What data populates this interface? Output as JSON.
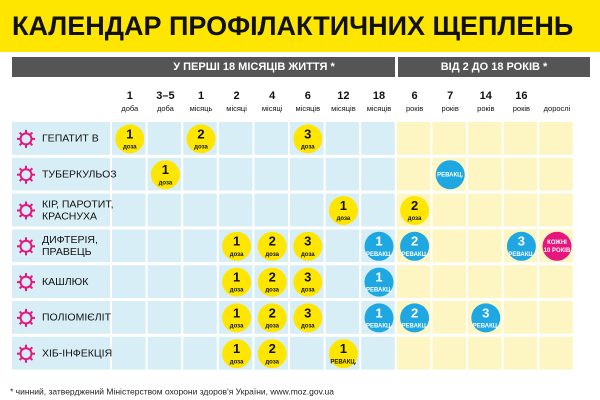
{
  "title": "КАЛЕНДАР ПРОФІЛАКТИЧНИХ ЩЕПЛЕНЬ",
  "groups": [
    "У ПЕРШІ 18 МІСЯЦІВ ЖИТТЯ *",
    "ВІД 2 ДО 18 РОКІВ *"
  ],
  "columns": [
    {
      "number": 1,
      "unit": "доба"
    },
    {
      "number": "3–5",
      "unit": "доба"
    },
    {
      "number": 1,
      "unit": "місяць"
    },
    {
      "number": 2,
      "unit": "місяці"
    },
    {
      "number": 4,
      "unit": "місяці"
    },
    {
      "number": 6,
      "unit": "місяців"
    },
    {
      "number": 12,
      "unit": "місяців"
    },
    {
      "number": 18,
      "unit": "місяців"
    },
    {
      "number": 6,
      "unit": "років"
    },
    {
      "number": 7,
      "unit": "років"
    },
    {
      "number": 14,
      "unit": "років"
    },
    {
      "number": 16,
      "unit": "років"
    },
    {
      "unit": "дорослі"
    }
  ],
  "rows": [
    {
      "label": [
        "ГЕПАТИТ В"
      ],
      "doses": [
        {
          "column": 0,
          "number": 1,
          "text": [
            "доза"
          ],
          "color": "#ffe600"
        },
        {
          "column": 2,
          "number": 2,
          "text": [
            "доза"
          ],
          "color": "#ffe600"
        },
        {
          "column": 5,
          "number": 3,
          "text": [
            "доза"
          ],
          "color": "#ffe600"
        }
      ]
    },
    {
      "label": [
        "ТУБЕРКУЛЬОЗ"
      ],
      "doses": [
        {
          "column": 1,
          "number": 1,
          "text": [
            "доза"
          ],
          "color": "#ffe600"
        },
        {
          "column": 9,
          "text": [
            "РЕВАКЦ."
          ],
          "color": "#1ea7e0"
        }
      ]
    },
    {
      "label": [
        "КІР, ПАРОТИТ,",
        "КРАСНУХА"
      ],
      "doses": [
        {
          "column": 6,
          "number": 1,
          "text": [
            "доза"
          ],
          "color": "#ffe600"
        },
        {
          "column": 8,
          "number": 2,
          "text": [
            "доза"
          ],
          "color": "#ffe600"
        }
      ]
    },
    {
      "label": [
        "ДИФТЕРІЯ,",
        "ПРАВЕЦЬ"
      ],
      "doses": [
        {
          "column": 3,
          "number": 1,
          "text": [
            "доза"
          ],
          "color": "#ffe600"
        },
        {
          "column": 4,
          "number": 2,
          "text": [
            "доза"
          ],
          "color": "#ffe600"
        },
        {
          "column": 5,
          "number": 3,
          "text": [
            "доза"
          ],
          "color": "#ffe600"
        },
        {
          "column": 7,
          "number": 1,
          "text": [
            "РЕВАКЦ."
          ],
          "color": "#1ea7e0"
        },
        {
          "column": 8,
          "number": 2,
          "text": [
            "РЕВАКЦ."
          ],
          "color": "#1ea7e0"
        },
        {
          "column": 11,
          "number": 3,
          "text": [
            "РЕВАКЦ."
          ],
          "color": "#1ea7e0"
        },
        {
          "column": 12,
          "text": [
            "КОЖНІ",
            "10 РОКІВ"
          ],
          "color": "#e5177e"
        }
      ]
    },
    {
      "label": [
        "КАШЛЮК"
      ],
      "doses": [
        {
          "column": 3,
          "number": 1,
          "text": [
            "доза"
          ],
          "color": "#ffe600"
        },
        {
          "column": 4,
          "number": 2,
          "text": [
            "доза"
          ],
          "color": "#ffe600"
        },
        {
          "column": 5,
          "number": 3,
          "text": [
            "доза"
          ],
          "color": "#ffe600"
        },
        {
          "column": 7,
          "number": 1,
          "text": [
            "РЕВАКЦ."
          ],
          "color": "#1ea7e0"
        }
      ]
    },
    {
      "label": [
        "ПОЛІОМІЄЛІТ"
      ],
      "doses": [
        {
          "column": 3,
          "number": 1,
          "text": [
            "доза"
          ],
          "color": "#ffe600"
        },
        {
          "column": 4,
          "number": 2,
          "text": [
            "доза"
          ],
          "color": "#ffe600"
        },
        {
          "column": 5,
          "number": 3,
          "text": [
            "доза"
          ],
          "color": "#ffe600"
        },
        {
          "column": 7,
          "number": 1,
          "text": [
            "РЕВАКЦ."
          ],
          "color": "#1ea7e0"
        },
        {
          "column": 8,
          "number": 2,
          "text": [
            "РЕВАКЦ."
          ],
          "color": "#1ea7e0"
        },
        {
          "column": 10,
          "number": 3,
          "text": [
            "РЕВАКЦ."
          ],
          "color": "#1ea7e0"
        }
      ]
    },
    {
      "label": [
        "ХІБ-ІНФЕКЦІЯ"
      ],
      "doses": [
        {
          "column": 3,
          "number": 1,
          "text": [
            "доза"
          ],
          "color": "#ffe600"
        },
        {
          "column": 4,
          "number": 2,
          "text": [
            "доза"
          ],
          "color": "#ffe600"
        },
        {
          "column": 6,
          "number": 1,
          "text": [
            "РЕВАКЦ."
          ],
          "color": "#ffe600"
        }
      ]
    }
  ],
  "footnote": "* чинний, затверджений Міністерством охорони здоров'я України, www.moz.gov.ua"
}
